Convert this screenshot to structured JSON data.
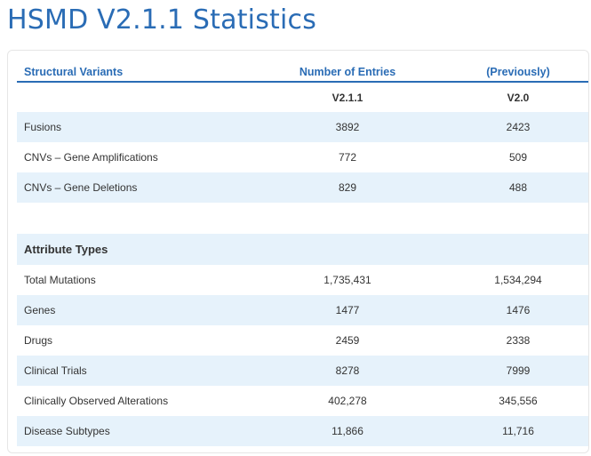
{
  "title": "HSMD V2.1.1 Statistics",
  "header": {
    "col1": "Structural Variants",
    "col2": "Number of Entries",
    "col3": "(Previously)",
    "col2_version": "V2.1.1",
    "col3_version": "V2.0"
  },
  "structural_rows": [
    {
      "label": "Fusions",
      "current": "3892",
      "previous": "2423"
    },
    {
      "label": "CNVs – Gene Amplifications",
      "current": "772",
      "previous": "509"
    },
    {
      "label": "CNVs – Gene Deletions",
      "current": "829",
      "previous": "488"
    }
  ],
  "attribute_section": "Attribute Types",
  "attribute_rows": [
    {
      "label": "Total Mutations",
      "current": "1,735,431",
      "previous": "1,534,294"
    },
    {
      "label": "Genes",
      "current": "1477",
      "previous": "1476"
    },
    {
      "label": "Drugs",
      "current": "2459",
      "previous": "2338"
    },
    {
      "label": "Clinical Trials",
      "current": "8278",
      "previous": "7999"
    },
    {
      "label": "Clinically Observed Alterations",
      "current": "402,278",
      "previous": "345,556"
    },
    {
      "label": "Disease Subtypes",
      "current": "11,866",
      "previous": "11,716"
    }
  ]
}
